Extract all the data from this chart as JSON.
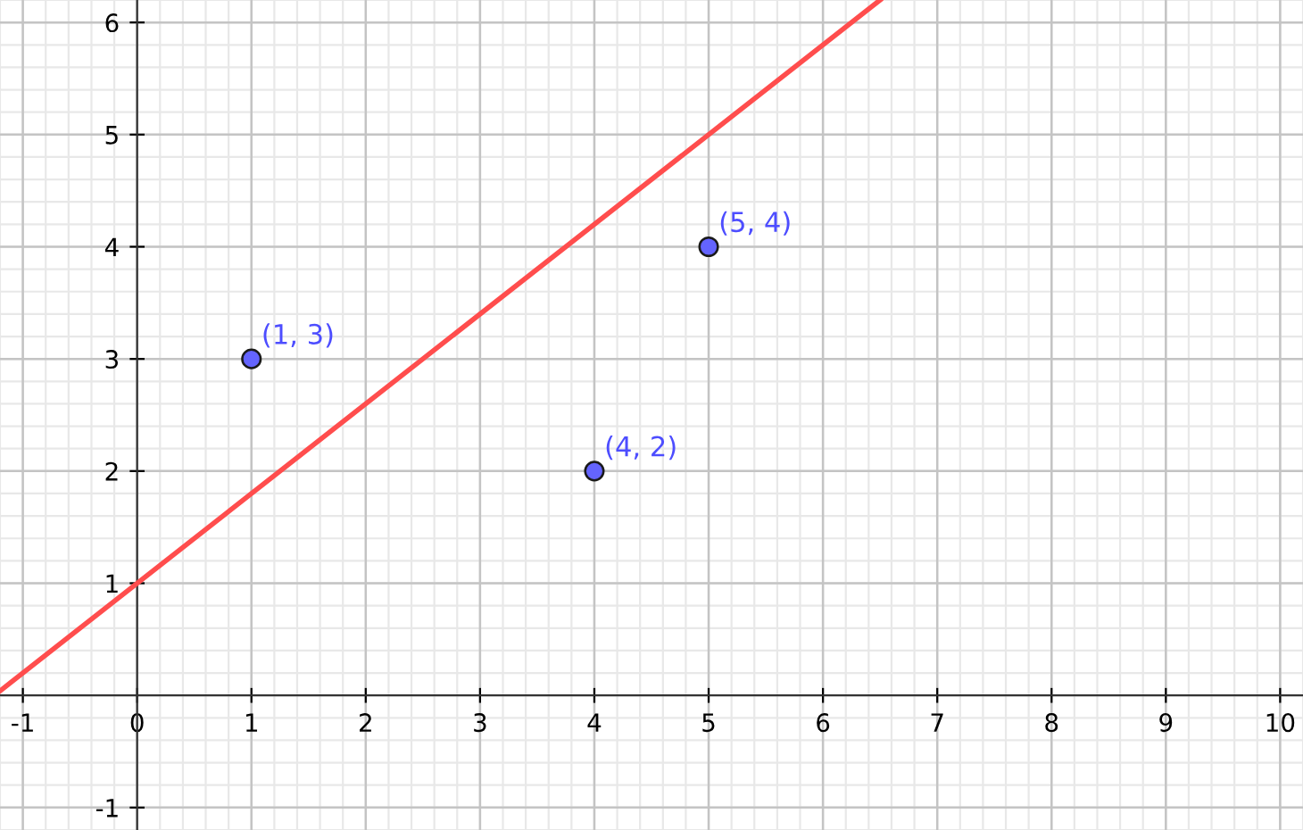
{
  "chart_data": {
    "type": "scatter",
    "xlim": [
      -1.2,
      10.2
    ],
    "ylim": [
      -1.2,
      6.2
    ],
    "xticks": [
      -1,
      0,
      1,
      2,
      3,
      4,
      5,
      6,
      7,
      8,
      9,
      10
    ],
    "yticks": [
      -1,
      1,
      2,
      3,
      4,
      5,
      6
    ],
    "grid": true,
    "series": [
      {
        "type": "line",
        "color": "#ff4d4d",
        "x": [
          -1.2,
          6.5
        ],
        "values": [
          0.04,
          6.2
        ],
        "marker": "none"
      },
      {
        "color": "#6464ff",
        "x": [
          1,
          4,
          5
        ],
        "values": [
          3,
          2,
          4
        ],
        "marker": "circle"
      }
    ],
    "annotations": [
      {
        "text": "(1, 3)",
        "x": 1,
        "y": 3
      },
      {
        "text": "(4, 2)",
        "x": 4,
        "y": 2
      },
      {
        "text": "(5, 4)",
        "x": 5,
        "y": 4
      }
    ]
  }
}
